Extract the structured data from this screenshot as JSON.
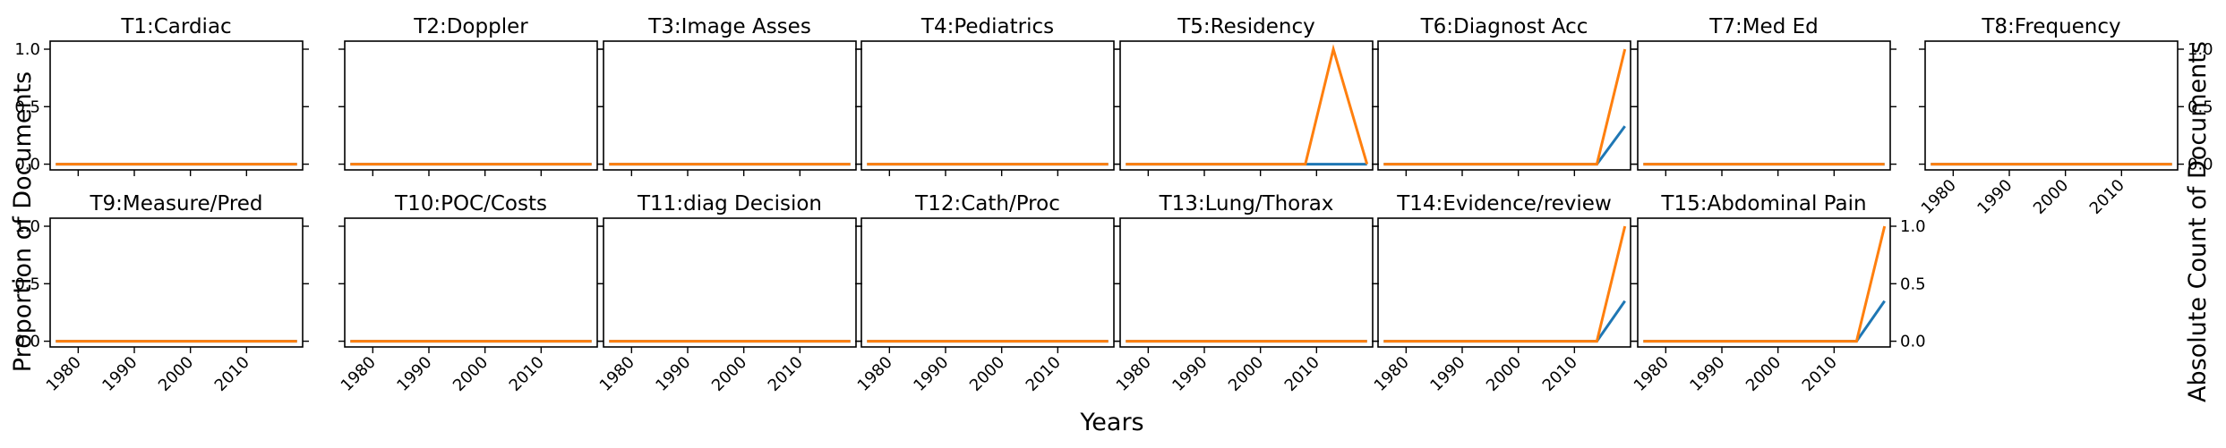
{
  "chart_data": {
    "type": "line",
    "xlabel": "Years",
    "ylabel_left": "Proportion of Documents",
    "ylabel_right": "Absolute Count of Documents",
    "xlim": [
      1975,
      2020
    ],
    "ylim": [
      -0.05,
      1.07
    ],
    "xticks": [
      1980,
      1990,
      2000,
      2010
    ],
    "yticks": [
      0.0,
      0.5,
      1.0
    ],
    "ytick_labels": [
      "0.0",
      "0.5",
      "1.0"
    ],
    "series_colors": [
      "#1f77b4",
      "#ff7f0e"
    ],
    "panels": [
      {
        "title": "T1:Cardiac",
        "series": [
          {
            "x": [
              1976,
              2019
            ],
            "y": [
              0,
              0
            ]
          },
          {
            "x": [
              1976,
              2019
            ],
            "y": [
              0,
              0
            ]
          }
        ]
      },
      {
        "title": "T2:Doppler",
        "series": [
          {
            "x": [
              1976,
              2019
            ],
            "y": [
              0,
              0
            ]
          },
          {
            "x": [
              1976,
              2019
            ],
            "y": [
              0,
              0
            ]
          }
        ]
      },
      {
        "title": "T3:Image Asses",
        "series": [
          {
            "x": [
              1976,
              2019
            ],
            "y": [
              0,
              0
            ]
          },
          {
            "x": [
              1976,
              2019
            ],
            "y": [
              0,
              0
            ]
          }
        ]
      },
      {
        "title": "T4:Pediatrics",
        "series": [
          {
            "x": [
              1976,
              2019
            ],
            "y": [
              0,
              0
            ]
          },
          {
            "x": [
              1976,
              2019
            ],
            "y": [
              0,
              0
            ]
          }
        ]
      },
      {
        "title": "T5:Residency",
        "series": [
          {
            "x": [
              1976,
              2008,
              2019
            ],
            "y": [
              0,
              0,
              0
            ]
          },
          {
            "x": [
              1976,
              2008,
              2013,
              2019
            ],
            "y": [
              0,
              0,
              1,
              0
            ]
          }
        ]
      },
      {
        "title": "T6:Diagnost Acc",
        "series": [
          {
            "x": [
              1976,
              2014,
              2019
            ],
            "y": [
              0,
              0,
              0.33
            ]
          },
          {
            "x": [
              1976,
              2014,
              2019
            ],
            "y": [
              0,
              0,
              1
            ]
          }
        ]
      },
      {
        "title": "T7:Med Ed",
        "series": [
          {
            "x": [
              1976,
              2019
            ],
            "y": [
              0,
              0
            ]
          },
          {
            "x": [
              1976,
              2019
            ],
            "y": [
              0,
              0
            ]
          }
        ]
      },
      {
        "title": "T8:Frequency",
        "series": [
          {
            "x": [
              1976,
              2019
            ],
            "y": [
              0,
              0
            ]
          },
          {
            "x": [
              1976,
              2019
            ],
            "y": [
              0,
              0
            ]
          }
        ]
      },
      {
        "title": "T9:Measure/Pred",
        "series": [
          {
            "x": [
              1976,
              2019
            ],
            "y": [
              0,
              0
            ]
          },
          {
            "x": [
              1976,
              2019
            ],
            "y": [
              0,
              0
            ]
          }
        ]
      },
      {
        "title": "T10:POC/Costs",
        "series": [
          {
            "x": [
              1976,
              2019
            ],
            "y": [
              0,
              0
            ]
          },
          {
            "x": [
              1976,
              2019
            ],
            "y": [
              0,
              0
            ]
          }
        ]
      },
      {
        "title": "T11:diag Decision",
        "series": [
          {
            "x": [
              1976,
              2019
            ],
            "y": [
              0,
              0
            ]
          },
          {
            "x": [
              1976,
              2019
            ],
            "y": [
              0,
              0
            ]
          }
        ]
      },
      {
        "title": "T12:Cath/Proc",
        "series": [
          {
            "x": [
              1976,
              2019
            ],
            "y": [
              0,
              0
            ]
          },
          {
            "x": [
              1976,
              2019
            ],
            "y": [
              0,
              0
            ]
          }
        ]
      },
      {
        "title": "T13:Lung/Thorax",
        "series": [
          {
            "x": [
              1976,
              2019
            ],
            "y": [
              0,
              0
            ]
          },
          {
            "x": [
              1976,
              2019
            ],
            "y": [
              0,
              0
            ]
          }
        ]
      },
      {
        "title": "T14:Evidence/review",
        "series": [
          {
            "x": [
              1976,
              2014,
              2019
            ],
            "y": [
              0,
              0,
              0.35
            ]
          },
          {
            "x": [
              1976,
              2014,
              2019
            ],
            "y": [
              0,
              0,
              1
            ]
          }
        ]
      },
      {
        "title": "T15:Abdominal Pain",
        "series": [
          {
            "x": [
              1976,
              2014,
              2019
            ],
            "y": [
              0,
              0,
              0.35
            ]
          },
          {
            "x": [
              1976,
              2014,
              2019
            ],
            "y": [
              0,
              0,
              1
            ]
          }
        ]
      }
    ]
  }
}
